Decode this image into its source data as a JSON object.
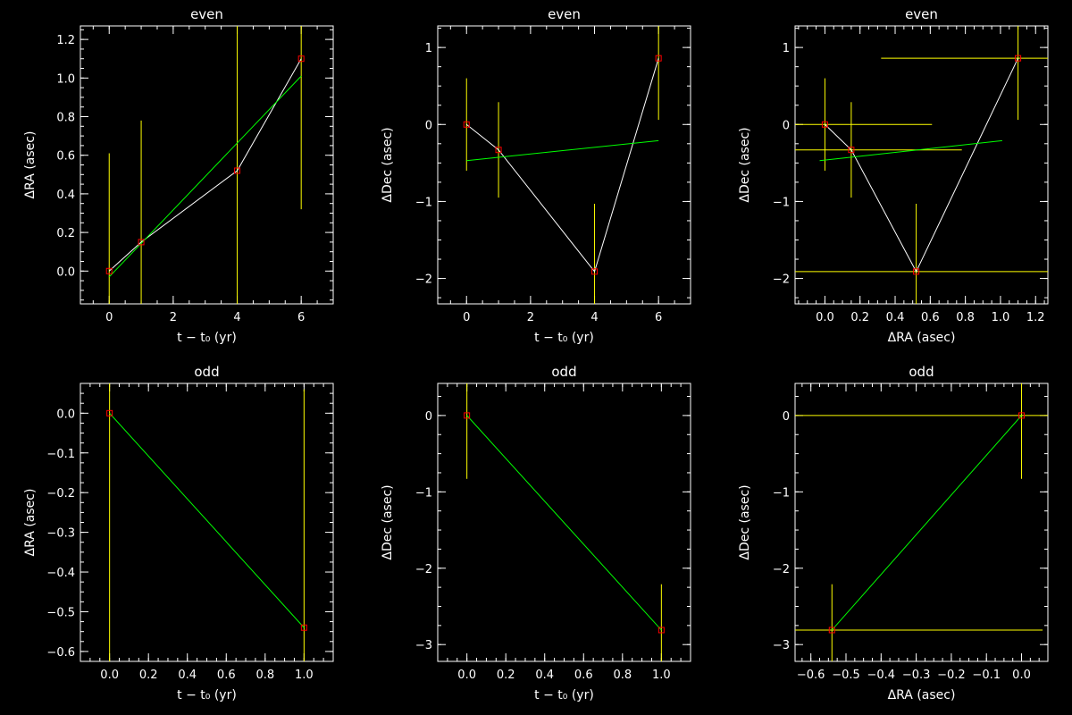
{
  "colors": {
    "background": "#000000",
    "axes": "#ffffff",
    "errorbar": "#ffff00",
    "marker": "#ff0000",
    "connect": "#ffffff",
    "fit": "#00ff00"
  },
  "chart_data": [
    {
      "type": "scatter",
      "title": "even",
      "xlabel": "t − t₀ (yr)",
      "ylabel": "ΔRA (asec)",
      "xlim": [
        -0.9,
        7.0
      ],
      "ylim": [
        -0.17,
        1.27
      ],
      "xticks": [
        0,
        2,
        4,
        6
      ],
      "xtick_labels": [
        "0",
        "2",
        "4",
        "6"
      ],
      "yticks": [
        0.0,
        0.2,
        0.4,
        0.6,
        0.8,
        1.0,
        1.2
      ],
      "ytick_labels": [
        "0.0",
        "0.2",
        "0.4",
        "0.6",
        "0.8",
        "1.0",
        "1.2"
      ],
      "points": [
        {
          "x": 0,
          "y": 0.0,
          "yerr": 0.61
        },
        {
          "x": 1,
          "y": 0.15,
          "yerr": 0.63
        },
        {
          "x": 4,
          "y": 0.52,
          "yerr": 0.8
        },
        {
          "x": 6,
          "y": 1.1,
          "yerr": 0.78
        }
      ],
      "connect_points": true,
      "fit_line": {
        "x": [
          0,
          6
        ],
        "y": [
          -0.03,
          1.01
        ]
      }
    },
    {
      "type": "scatter",
      "title": "even",
      "xlabel": "t − t₀ (yr)",
      "ylabel": "ΔDec (asec)",
      "xlim": [
        -0.9,
        7.0
      ],
      "ylim": [
        -2.33,
        1.28
      ],
      "xticks": [
        0,
        2,
        4,
        6
      ],
      "xtick_labels": [
        "0",
        "2",
        "4",
        "6"
      ],
      "yticks": [
        -2,
        -1,
        0,
        1
      ],
      "ytick_labels": [
        "−2",
        "−1",
        "0",
        "1"
      ],
      "points": [
        {
          "x": 0,
          "y": 0.0,
          "yerr": 0.6
        },
        {
          "x": 1,
          "y": -0.33,
          "yerr": 0.62
        },
        {
          "x": 4,
          "y": -1.91,
          "yerr": 0.88
        },
        {
          "x": 6,
          "y": 0.86,
          "yerr": 0.8
        }
      ],
      "connect_points": true,
      "fit_line": {
        "x": [
          0,
          6
        ],
        "y": [
          -0.47,
          -0.21
        ]
      }
    },
    {
      "type": "scatter",
      "title": "even",
      "xlabel": "ΔRA (asec)",
      "ylabel": "ΔDec (asec)",
      "xlim": [
        -0.17,
        1.27
      ],
      "ylim": [
        -2.33,
        1.28
      ],
      "xticks": [
        0.0,
        0.2,
        0.4,
        0.6,
        0.8,
        1.0,
        1.2
      ],
      "xtick_labels": [
        "0.0",
        "0.2",
        "0.4",
        "0.6",
        "0.8",
        "1.0",
        "1.2"
      ],
      "yticks": [
        -2,
        -1,
        0,
        1
      ],
      "ytick_labels": [
        "−2",
        "−1",
        "0",
        "1"
      ],
      "points": [
        {
          "x": 0.0,
          "y": 0.0,
          "xerr": 0.61,
          "yerr": 0.6
        },
        {
          "x": 0.15,
          "y": -0.33,
          "xerr": 0.63,
          "yerr": 0.62
        },
        {
          "x": 0.52,
          "y": -1.91,
          "xerr": 0.8,
          "yerr": 0.88
        },
        {
          "x": 1.1,
          "y": 0.86,
          "xerr": 0.78,
          "yerr": 0.8
        }
      ],
      "connect_points": true,
      "fit_line": {
        "x": [
          -0.03,
          1.01
        ],
        "y": [
          -0.47,
          -0.21
        ]
      }
    },
    {
      "type": "scatter",
      "title": "odd",
      "xlabel": "t − t₀ (yr)",
      "ylabel": "ΔRA (asec)",
      "xlim": [
        -0.15,
        1.15
      ],
      "ylim": [
        -0.625,
        0.075
      ],
      "xticks": [
        0.0,
        0.2,
        0.4,
        0.6,
        0.8,
        1.0
      ],
      "xtick_labels": [
        "0.0",
        "0.2",
        "0.4",
        "0.6",
        "0.8",
        "1.0"
      ],
      "yticks": [
        0.0,
        -0.1,
        -0.2,
        -0.3,
        -0.4,
        -0.5,
        -0.6
      ],
      "ytick_labels": [
        "0.0",
        "−0.1",
        "−0.2",
        "−0.3",
        "−0.4",
        "−0.5",
        "−0.6"
      ],
      "points": [
        {
          "x": 0,
          "y": 0.0,
          "yerr": 0.7
        },
        {
          "x": 1,
          "y": -0.54,
          "yerr": 0.6
        }
      ],
      "connect_points": false,
      "fit_line": {
        "x": [
          0,
          1
        ],
        "y": [
          0.0,
          -0.54
        ]
      }
    },
    {
      "type": "scatter",
      "title": "odd",
      "xlabel": "t − t₀ (yr)",
      "ylabel": "ΔDec (asec)",
      "xlim": [
        -0.15,
        1.15
      ],
      "ylim": [
        -3.22,
        0.42
      ],
      "xticks": [
        0.0,
        0.2,
        0.4,
        0.6,
        0.8,
        1.0
      ],
      "xtick_labels": [
        "0.0",
        "0.2",
        "0.4",
        "0.6",
        "0.8",
        "1.0"
      ],
      "yticks": [
        0,
        -1,
        -2,
        -3
      ],
      "ytick_labels": [
        "0",
        "−1",
        "−2",
        "−3"
      ],
      "points": [
        {
          "x": 0,
          "y": 0.0,
          "yerr": 0.83
        },
        {
          "x": 1,
          "y": -2.81,
          "yerr": 0.6
        }
      ],
      "connect_points": false,
      "fit_line": {
        "x": [
          0,
          1
        ],
        "y": [
          0.0,
          -2.81
        ]
      }
    },
    {
      "type": "scatter",
      "title": "odd",
      "xlabel": "ΔRA (asec)",
      "ylabel": "ΔDec (asec)",
      "xlim": [
        -0.645,
        0.075
      ],
      "ylim": [
        -3.22,
        0.42
      ],
      "xticks": [
        -0.6,
        -0.5,
        -0.4,
        -0.3,
        -0.2,
        -0.1,
        0.0
      ],
      "xtick_labels": [
        "−0.6",
        "−0.5",
        "−0.4",
        "−0.3",
        "−0.2",
        "−0.1",
        "0.0"
      ],
      "yticks": [
        0,
        -1,
        -2,
        -3
      ],
      "ytick_labels": [
        "0",
        "−1",
        "−2",
        "−3"
      ],
      "points": [
        {
          "x": 0.0,
          "y": 0.0,
          "xerr": 0.7,
          "yerr": 0.83
        },
        {
          "x": -0.54,
          "y": -2.81,
          "xerr": 0.6,
          "yerr": 0.6
        }
      ],
      "connect_points": false,
      "fit_line": {
        "x": [
          0.0,
          -0.54
        ],
        "y": [
          0.0,
          -2.81
        ]
      }
    }
  ]
}
